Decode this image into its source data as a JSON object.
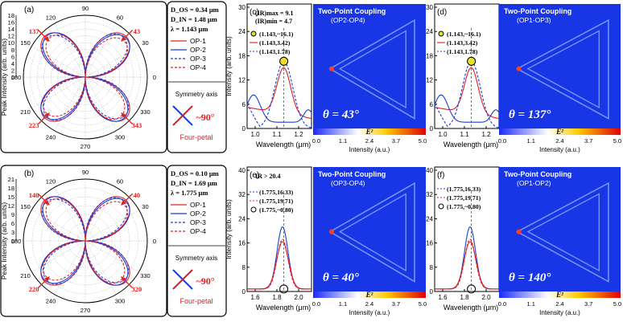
{
  "colors": {
    "red": "#e02020",
    "blue": "#1a3fd6",
    "grid": "#9a9a9a",
    "field_bg": "#1836e6"
  },
  "polar_panels": [
    {
      "tag": "(a)",
      "ylabel": "Peak Intensity (arb. units)",
      "rticks": [
        "0",
        "2",
        "4",
        "6",
        "8",
        "10",
        "12",
        "14",
        "16",
        "18"
      ],
      "angles": [
        "90",
        "60",
        "30",
        "0",
        "330",
        "300",
        "270",
        "240",
        "210",
        "180",
        "150",
        "120"
      ],
      "arrow_labels": [
        "137",
        "43",
        "223",
        "343"
      ],
      "info": [
        "D_OS = 0.34 μm",
        "D_IN = 1.48 μm",
        "λ = 1.143 μm"
      ],
      "legend": [
        "OP-1",
        "OP-2",
        "OP-3",
        "OP-4"
      ],
      "symmetry_label": "Symmetry axis",
      "angle_text": "~90°",
      "shape_text": "Four-petal"
    },
    {
      "tag": "(b)",
      "ylabel": "Peak Intensity (arb. units)",
      "rticks": [
        "0",
        "3",
        "6",
        "9",
        "12",
        "15",
        "18",
        "21"
      ],
      "angles": [
        "90",
        "60",
        "30",
        "0",
        "330",
        "300",
        "270",
        "240",
        "210",
        "180",
        "150",
        "120"
      ],
      "arrow_labels": [
        "140",
        "40",
        "220",
        "320"
      ],
      "info": [
        "D_OS = 0.10 μm",
        "D_IN = 1.69 μm",
        "λ = 1.775 μm"
      ],
      "legend": [
        "OP-1",
        "OP-2",
        "OP-3",
        "OP-4"
      ],
      "symmetry_label": "Symmetry axis",
      "angle_text": "~90°",
      "shape_text": "Four-petal"
    }
  ],
  "spectra": [
    {
      "tag": "(c)",
      "ylabel": "Intensity (arb. units)",
      "xlabel": "Wavelength (μm)",
      "xticks": [
        "1.0",
        "1.1",
        "1.2"
      ],
      "yticks": [
        "0",
        "6",
        "12",
        "18",
        "24",
        "30"
      ],
      "annot": [
        "(IR)max = 9.1",
        "(IR)min = 4.7"
      ],
      "legend": [
        "(1.143,~16.1)",
        "(1.143,3.42)",
        "(1.143,1.78)"
      ]
    },
    {
      "tag": "(d)",
      "ylabel": "",
      "xlabel": "Wavelength (μm)",
      "xticks": [
        "1.0",
        "1.1",
        "1.2"
      ],
      "yticks": [
        "0",
        "6",
        "12",
        "18",
        "24",
        "30"
      ],
      "annot": [],
      "legend": [
        "(1.143,~16.1)",
        "(1.143,3.42)",
        "(1.143,1.78)"
      ]
    },
    {
      "tag": "(e)",
      "ylabel": "Intensity (arb. units)",
      "xlabel": "Wavelength (μm)",
      "xticks": [
        "1.6",
        "1.8",
        "2.0"
      ],
      "yticks": [
        "0",
        "8",
        "16",
        "24",
        "32",
        "40"
      ],
      "annot": [
        "IR > 20.4"
      ],
      "legend": [
        "(1.775,16.33)",
        "(1.775,19.71)",
        "(1.775,~0.80)"
      ]
    },
    {
      "tag": "(f)",
      "ylabel": "",
      "xlabel": "Wavelength (μm)",
      "xticks": [
        "1.6",
        "1.8",
        "2.0"
      ],
      "yticks": [
        "0",
        "8",
        "16",
        "24",
        "32",
        "40"
      ],
      "annot": [],
      "legend": [
        "(1.775,16.33)",
        "(1.775,19.71)",
        "(1.775,~0.80)"
      ]
    }
  ],
  "fields": [
    {
      "title": "Two-Point Coupling",
      "sub": "(OP2-OP4)",
      "theta": "θ = 43°",
      "cbar_label": "E²",
      "cbar_xlabel": "Intensity (a.u.)",
      "cbar_ticks": [
        "0.0",
        "1.1",
        "2.4",
        "3.7",
        "5.0"
      ]
    },
    {
      "title": "Two-Point Coupling",
      "sub": "(OP1-OP3)",
      "theta": "θ = 137°",
      "cbar_label": "E²",
      "cbar_xlabel": "Intensity (a.u.)",
      "cbar_ticks": [
        "0.0",
        "1.1",
        "2.4",
        "3.7",
        "5.0"
      ]
    },
    {
      "title": "Two-Point Coupling",
      "sub": "(OP3-OP4)",
      "theta": "θ = 40°",
      "cbar_label": "E²",
      "cbar_xlabel": "Intensity (a.u.)",
      "cbar_ticks": [
        "0.0",
        "1.1",
        "2.4",
        "3.7",
        "5.0"
      ]
    },
    {
      "title": "Two-Point Coupling",
      "sub": "(OP1-OP2)",
      "theta": "θ = 140°",
      "cbar_label": "E²",
      "cbar_xlabel": "Intensity (a.u.)",
      "cbar_ticks": [
        "0.0",
        "1.1",
        "2.4",
        "3.7",
        "5.0"
      ]
    }
  ],
  "chart_data": [
    {
      "type": "line",
      "subtype": "polar",
      "panel": "(a)",
      "rlim": [
        0,
        18
      ],
      "series": [
        {
          "name": "OP-1",
          "style": "solid-red"
        },
        {
          "name": "OP-2",
          "style": "solid-blue"
        },
        {
          "name": "OP-3",
          "style": "dashed-blue"
        },
        {
          "name": "OP-4",
          "style": "dashed-red"
        }
      ]
    },
    {
      "type": "line",
      "subtype": "polar",
      "panel": "(b)",
      "rlim": [
        0,
        21
      ],
      "series": [
        {
          "name": "OP-1",
          "style": "solid-red"
        },
        {
          "name": "OP-2",
          "style": "solid-blue"
        },
        {
          "name": "OP-3",
          "style": "dashed-blue"
        },
        {
          "name": "OP-4",
          "style": "dashed-red"
        }
      ]
    },
    {
      "type": "line",
      "panel": "(c)",
      "xlim": [
        1.0,
        1.25
      ],
      "ylim": [
        0,
        30
      ],
      "marked_points": [
        [
          1.143,
          16.1
        ],
        [
          1.143,
          3.42
        ],
        [
          1.143,
          1.78
        ]
      ]
    },
    {
      "type": "line",
      "panel": "(d)",
      "xlim": [
        1.0,
        1.25
      ],
      "ylim": [
        0,
        30
      ],
      "marked_points": [
        [
          1.143,
          16.1
        ],
        [
          1.143,
          3.42
        ],
        [
          1.143,
          1.78
        ]
      ]
    },
    {
      "type": "line",
      "panel": "(e)",
      "xlim": [
        1.55,
        2.1
      ],
      "ylim": [
        0,
        40
      ],
      "marked_points": [
        [
          1.775,
          16.33
        ],
        [
          1.775,
          19.71
        ],
        [
          1.775,
          0.8
        ]
      ]
    },
    {
      "type": "line",
      "panel": "(f)",
      "xlim": [
        1.55,
        2.1
      ],
      "ylim": [
        0,
        40
      ],
      "marked_points": [
        [
          1.775,
          16.33
        ],
        [
          1.775,
          19.71
        ],
        [
          1.775,
          0.8
        ]
      ]
    }
  ]
}
